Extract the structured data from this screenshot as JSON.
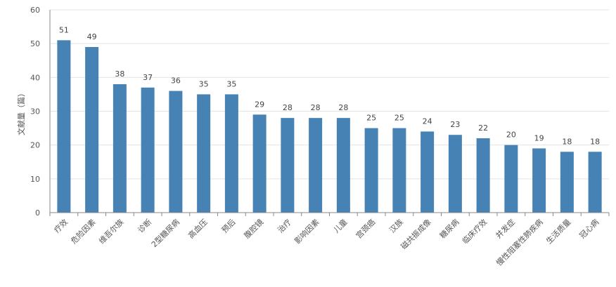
{
  "chart_data": {
    "type": "bar",
    "title": "",
    "xlabel": "",
    "ylabel": "文献量（篇）",
    "ylim": [
      0,
      60
    ],
    "yticks": [
      0,
      10,
      20,
      30,
      40,
      50,
      60
    ],
    "grid": true,
    "categories": [
      "疗效",
      "危险因素",
      "维吾尔族",
      "诊断",
      "2型糖尿病",
      "高血压",
      "预后",
      "腹腔镜",
      "治疗",
      "影响因素",
      "儿童",
      "宫颈癌",
      "汉族",
      "磁共振成像",
      "糖尿病",
      "临床疗效",
      "并发症",
      "慢性阻塞性肺疾病",
      "生活质量",
      "冠心病"
    ],
    "values": [
      51,
      49,
      38,
      37,
      36,
      35,
      35,
      29,
      28,
      28,
      28,
      25,
      25,
      24,
      23,
      22,
      20,
      19,
      18,
      18
    ],
    "colors": {
      "bar": "#4682b4",
      "grid": "#e3e3e3",
      "axis": "#888888"
    }
  }
}
